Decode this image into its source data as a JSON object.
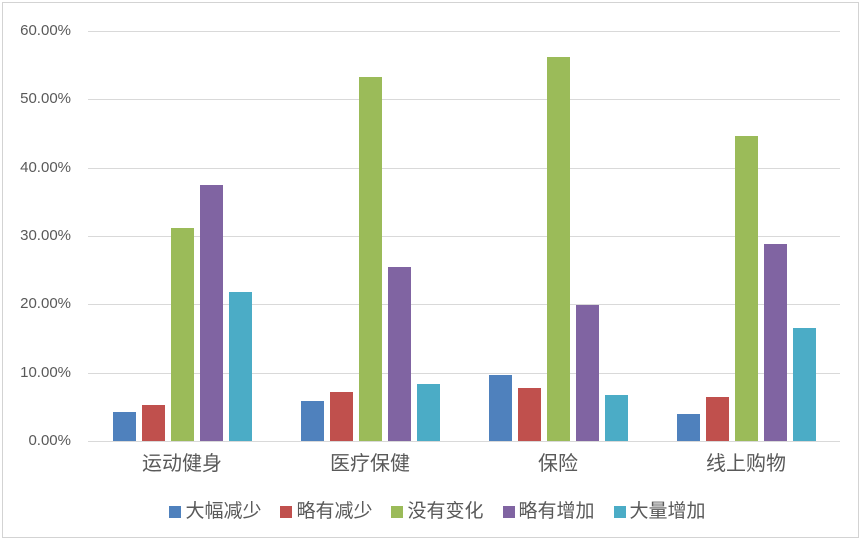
{
  "colors": {
    "background": "#FFFFFF",
    "frame_border": "#D3D3D3",
    "gridline": "#D9D9D9",
    "axis_line": "#D9D9D9",
    "text": "#595959"
  },
  "chart_data": {
    "type": "bar",
    "title": "",
    "categories": [
      "运动健身",
      "医疗保健",
      "保险",
      "线上购物"
    ],
    "series": [
      {
        "name": "大幅减少",
        "color": "#4F81BD",
        "values": [
          4.3,
          5.9,
          9.6,
          3.9
        ]
      },
      {
        "name": "略有减少",
        "color": "#C0504D",
        "values": [
          5.2,
          7.1,
          7.7,
          6.4
        ]
      },
      {
        "name": "没有变化",
        "color": "#9BBB59",
        "values": [
          31.1,
          53.2,
          56.2,
          44.6
        ]
      },
      {
        "name": "略有增加",
        "color": "#8064A2",
        "values": [
          37.5,
          25.5,
          19.9,
          28.9
        ]
      },
      {
        "name": "大量增加",
        "color": "#4BACC6",
        "values": [
          21.8,
          8.4,
          6.7,
          16.6
        ]
      }
    ],
    "y_axis": {
      "min": 0,
      "max": 60,
      "step": 10,
      "unit": "%",
      "tick_labels": [
        "0.00%",
        "10.00%",
        "20.00%",
        "30.00%",
        "40.00%",
        "50.00%",
        "60.00%"
      ]
    },
    "grid": true,
    "legend_position": "bottom"
  }
}
